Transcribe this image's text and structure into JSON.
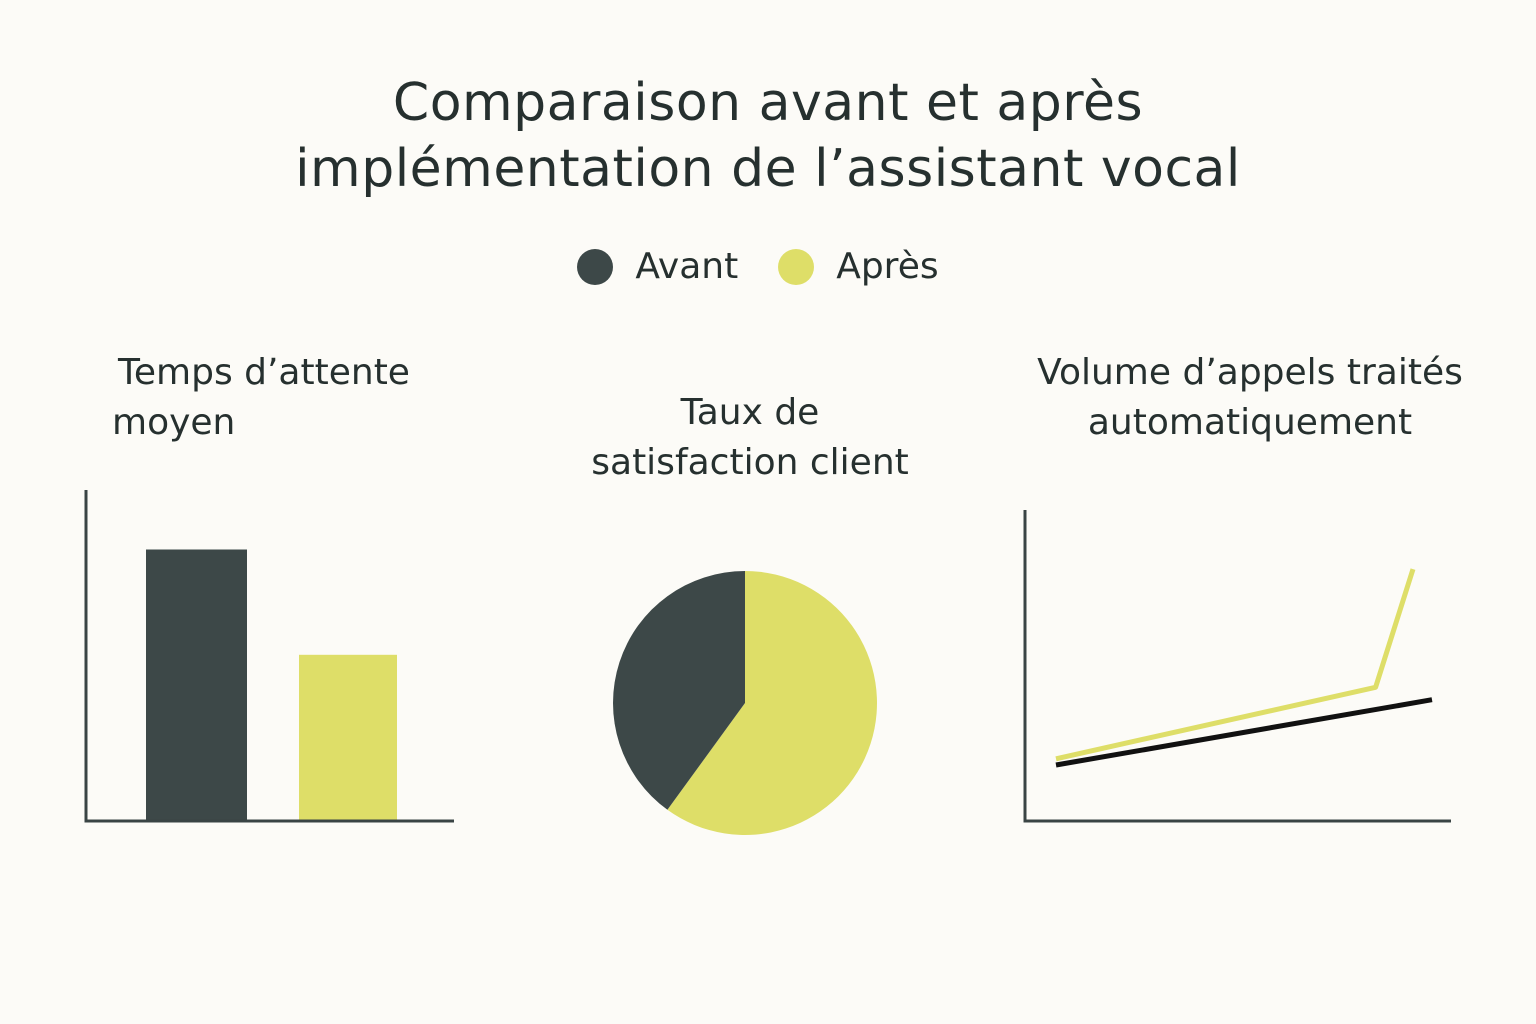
{
  "title": {
    "line1": "Comparaison avant et après",
    "line2": "implémentation de l’assistant vocal"
  },
  "legend": [
    {
      "label": "Avant",
      "color": "#3d4848"
    },
    {
      "label": "Après",
      "color": "#dede68"
    }
  ],
  "colors": {
    "background": "#fcfbf7",
    "text": "#26302f",
    "axis": "#3a4444",
    "avant": "#3d4848",
    "apres": "#dede68",
    "avant_line": "#111111"
  },
  "chart_data": [
    {
      "type": "bar",
      "title_lines": [
        "Temps d’attente",
        "moyen"
      ],
      "categories": [
        "Avant",
        "Après"
      ],
      "values": [
        100,
        61
      ],
      "ylim": [
        0,
        100
      ],
      "grid": false
    },
    {
      "type": "pie",
      "title_lines": [
        "Taux de",
        "satisfaction client"
      ],
      "slices": [
        {
          "label": "Avant",
          "value": 40
        },
        {
          "label": "Après",
          "value": 60
        }
      ]
    },
    {
      "type": "line",
      "title_lines": [
        "Volume d’appels traités",
        "automatiquement"
      ],
      "x": [
        0,
        1,
        2
      ],
      "ylim": [
        0,
        100
      ],
      "series": [
        {
          "name": "Avant",
          "x": [
            0,
            2
          ],
          "values": [
            18,
            39
          ]
        },
        {
          "name": "Après",
          "x": [
            0,
            1.7,
            2
          ],
          "values": [
            20,
            43,
            81
          ]
        }
      ],
      "grid": false
    }
  ]
}
